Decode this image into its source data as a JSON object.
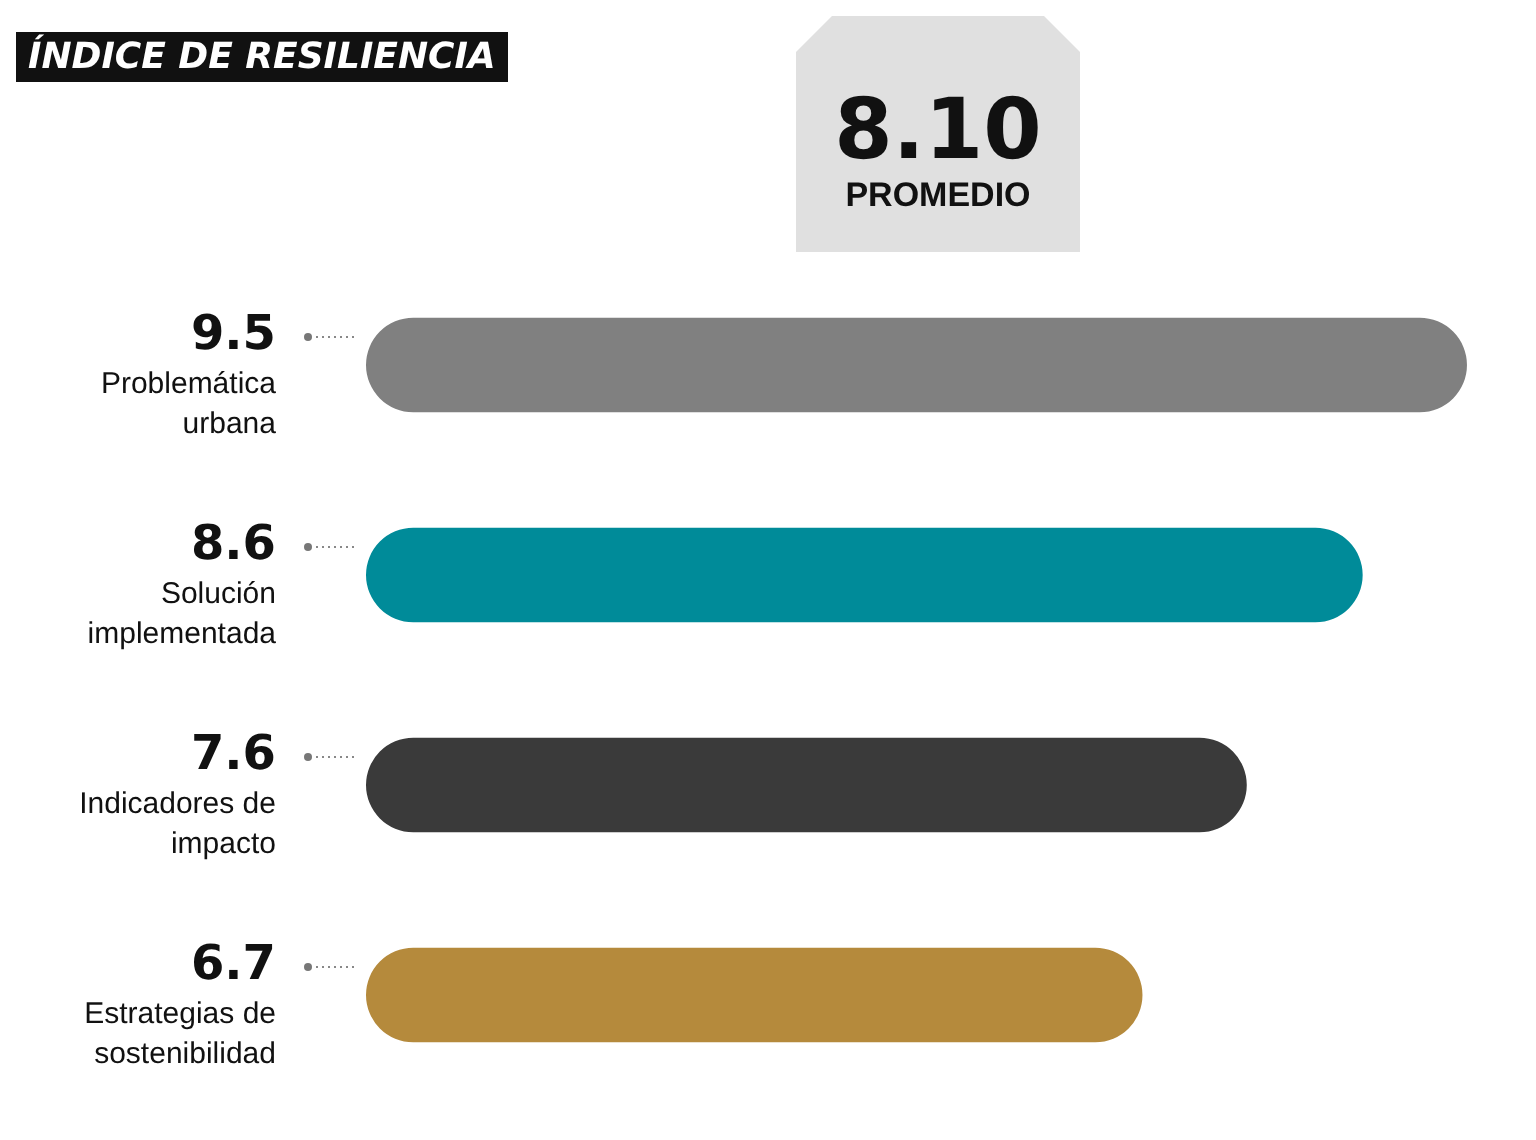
{
  "chart_data": {
    "type": "bar",
    "orientation": "horizontal",
    "title": "ÍNDICE DE RESILIENCIA",
    "categories": [
      "Problemática urbana",
      "Solución implementada",
      "Indicadores de impacto",
      "Estrategias de sostenibilidad"
    ],
    "values": [
      9.5,
      8.6,
      7.6,
      6.7
    ],
    "colors": [
      "#808080",
      "#008b99",
      "#3a3a3a",
      "#b58a3c"
    ],
    "data_labels": true,
    "annotations": [
      "8.10",
      "PROMEDIO"
    ],
    "legend": false
  }
}
